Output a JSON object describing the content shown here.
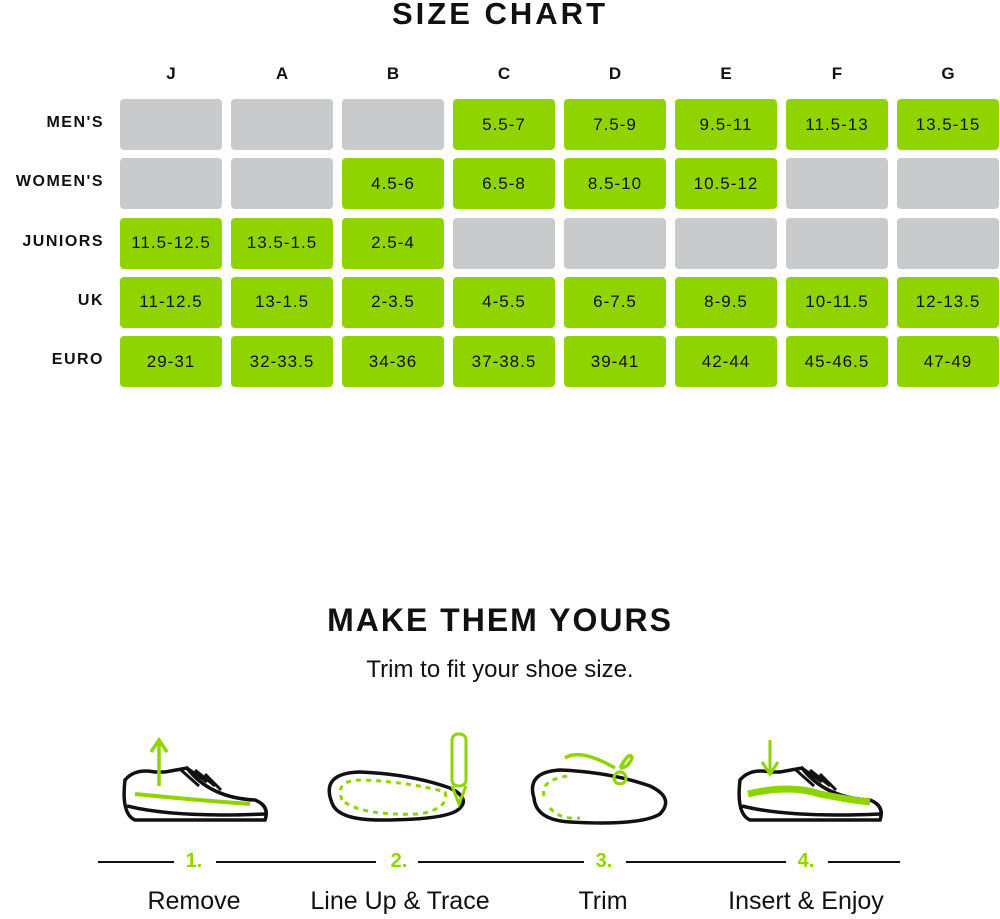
{
  "size_chart": {
    "title": "SIZE CHART",
    "columns": [
      "J",
      "A",
      "B",
      "C",
      "D",
      "E",
      "F",
      "G"
    ],
    "colors": {
      "available": "#8fd400",
      "unavailable": "#c9cacc"
    },
    "rows": [
      {
        "label": "MEN'S",
        "values": [
          null,
          null,
          null,
          "5.5-7",
          "7.5-9",
          "9.5-11",
          "11.5-13",
          "13.5-15"
        ]
      },
      {
        "label": "WOMEN'S",
        "values": [
          null,
          null,
          "4.5-6",
          "6.5-8",
          "8.5-10",
          "10.5-12",
          null,
          null
        ]
      },
      {
        "label": "JUNIORS",
        "values": [
          "11.5-12.5",
          "13.5-1.5",
          "2.5-4",
          null,
          null,
          null,
          null,
          null
        ]
      },
      {
        "label": "UK",
        "values": [
          "11-12.5",
          "13-1.5",
          "2-3.5",
          "4-5.5",
          "6-7.5",
          "8-9.5",
          "10-11.5",
          "12-13.5"
        ]
      },
      {
        "label": "EURO",
        "values": [
          "29-31",
          "32-33.5",
          "34-36",
          "37-38.5",
          "39-41",
          "42-44",
          "45-46.5",
          "47-49"
        ]
      }
    ]
  },
  "instructions": {
    "title": "MAKE THEM YOURS",
    "subtitle": "Trim to fit your shoe size.",
    "accent": "#8fd400",
    "steps": [
      {
        "number": "1.",
        "label": "Remove",
        "icon": "shoe-remove-insole-icon"
      },
      {
        "number": "2.",
        "label": "Line Up & Trace",
        "icon": "trace-insole-pencil-icon"
      },
      {
        "number": "3.",
        "label": "Trim",
        "icon": "trim-insole-scissors-icon"
      },
      {
        "number": "4.",
        "label": "Insert & Enjoy",
        "icon": "shoe-insert-insole-icon"
      }
    ]
  }
}
